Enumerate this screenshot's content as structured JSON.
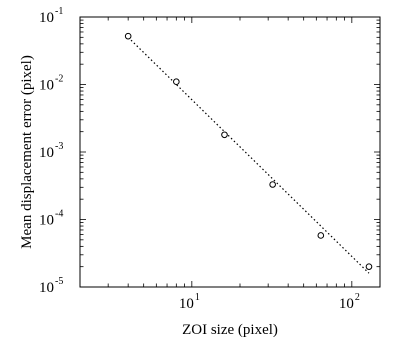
{
  "chart_data": {
    "type": "scatter",
    "xlabel": "ZOI size (pixel)",
    "ylabel": "Mean displacement error (pixel)",
    "x_scale": "log",
    "y_scale": "log",
    "xlim": [
      2,
      150
    ],
    "ylim": [
      1e-05,
      0.1
    ],
    "x_ticks": [
      {
        "base": "10",
        "exp": "1",
        "value": 10
      },
      {
        "base": "10",
        "exp": "2",
        "value": 100
      }
    ],
    "y_ticks": [
      {
        "base": "10",
        "exp": "-5",
        "value": 1e-05
      },
      {
        "base": "10",
        "exp": "-4",
        "value": 0.0001
      },
      {
        "base": "10",
        "exp": "-3",
        "value": 0.001
      },
      {
        "base": "10",
        "exp": "-2",
        "value": 0.01
      },
      {
        "base": "10",
        "exp": "-1",
        "value": 0.1
      }
    ],
    "grid": false,
    "series": [
      {
        "marker": "open-circle",
        "x": [
          4,
          8,
          16,
          32,
          64,
          128
        ],
        "y": [
          0.052,
          0.011,
          0.0018,
          0.00033,
          5.8e-05,
          2e-05
        ]
      },
      {
        "style": "dotted-line",
        "x": [
          4,
          128
        ],
        "y": [
          0.05,
          1.6e-05
        ]
      }
    ]
  }
}
